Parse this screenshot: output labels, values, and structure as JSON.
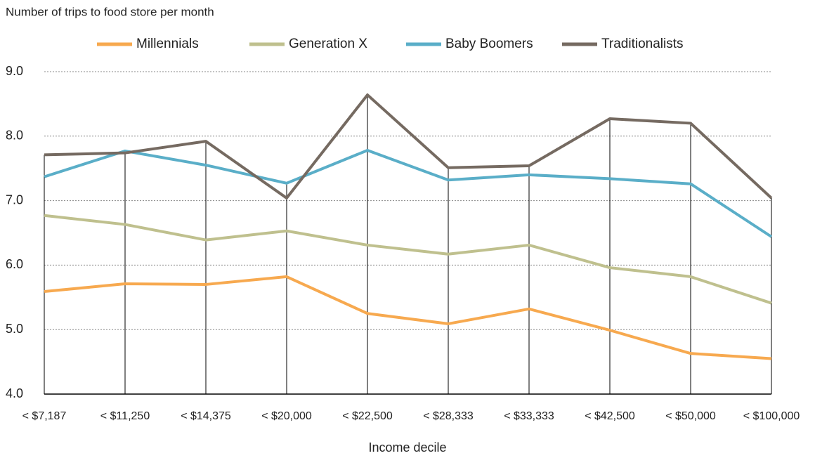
{
  "chart_data": {
    "type": "line",
    "y_label": "Number of trips to food store per month",
    "x_label": "Income decile",
    "categories": [
      "< $7,187",
      "< $11,250",
      "< $14,375",
      "< $20,000",
      "< $22,500",
      "< $28,333",
      "< $33,333",
      "< $42,500",
      "< $50,000",
      "< $100,000"
    ],
    "series": [
      {
        "name": "Millennials",
        "color": "#f7a94f",
        "values": [
          5.59,
          5.71,
          5.7,
          5.82,
          5.25,
          5.09,
          5.32,
          4.99,
          4.63,
          4.55
        ]
      },
      {
        "name": "Generation X",
        "color": "#bfc08e",
        "values": [
          6.77,
          6.63,
          6.39,
          6.53,
          6.31,
          6.17,
          6.31,
          5.96,
          5.82,
          5.41
        ]
      },
      {
        "name": "Baby Boomers",
        "color": "#5aaec8",
        "values": [
          7.37,
          7.77,
          7.55,
          7.27,
          7.78,
          7.32,
          7.4,
          7.34,
          7.26,
          6.44
        ]
      },
      {
        "name": "Traditionalists",
        "color": "#756a61",
        "values": [
          7.71,
          7.74,
          7.92,
          7.04,
          8.64,
          7.51,
          7.54,
          8.27,
          8.2,
          7.04
        ]
      }
    ],
    "ylim": [
      4,
      9
    ],
    "yticks": [
      {
        "value": 4,
        "label": "4.0"
      },
      {
        "value": 5,
        "label": "5.0"
      },
      {
        "value": 6,
        "label": "6.0"
      },
      {
        "value": 7,
        "label": "7.0"
      },
      {
        "value": 8,
        "label": "8.0"
      },
      {
        "value": 9,
        "label": "9.0"
      }
    ],
    "grid": true,
    "legend": "top"
  }
}
